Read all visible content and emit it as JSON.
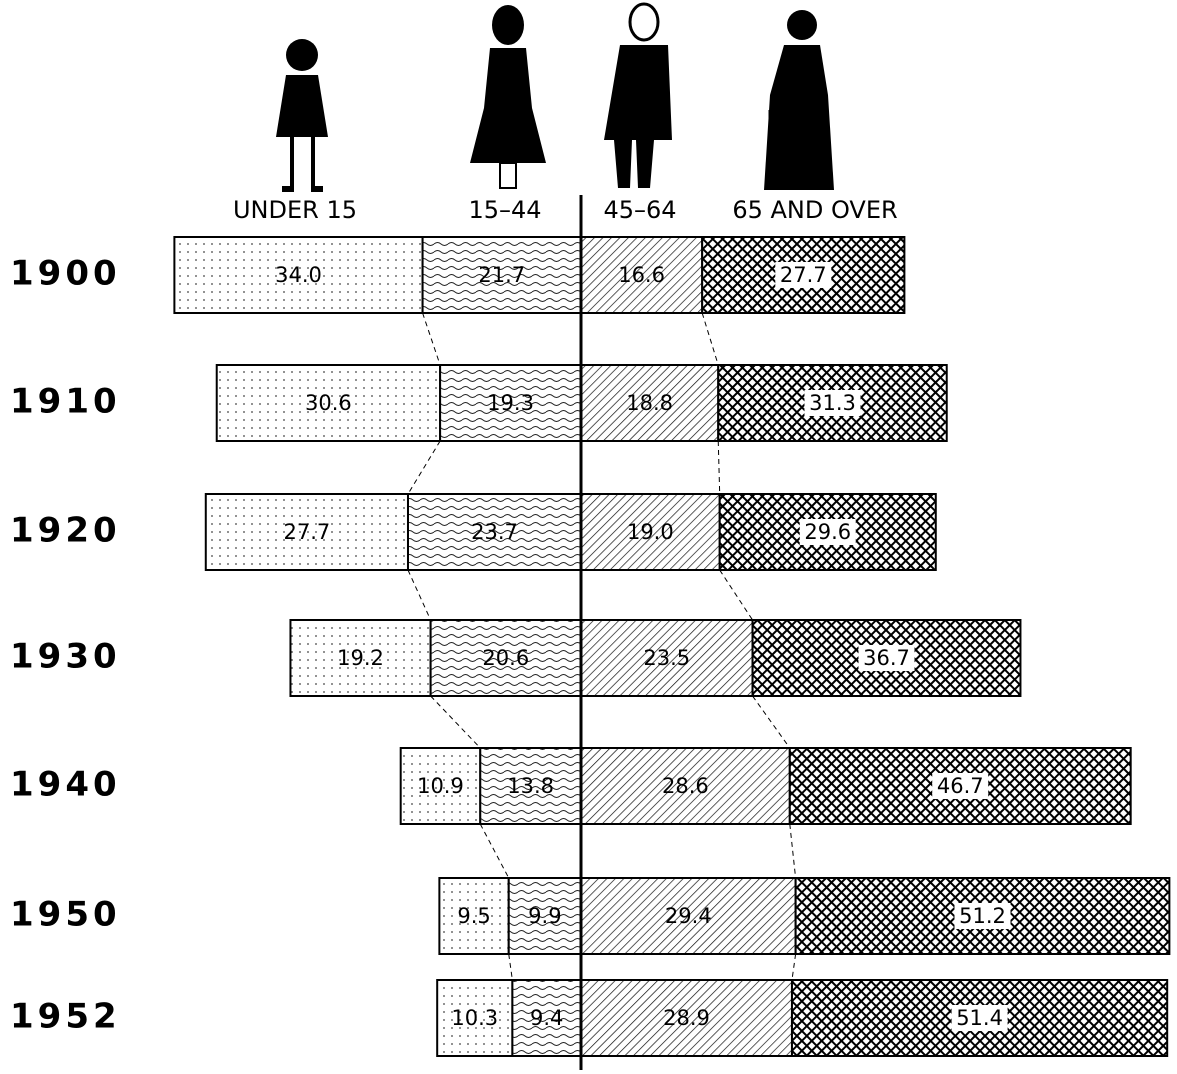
{
  "chart_data": {
    "type": "bar",
    "categories": [
      "1900",
      "1910",
      "1920",
      "1930",
      "1940",
      "1950",
      "1952"
    ],
    "series": [
      {
        "name": "UNDER 15",
        "values": [
          34.0,
          30.6,
          27.7,
          19.2,
          10.9,
          9.5,
          10.3
        ],
        "value_labels": [
          "34.0",
          "30.6",
          "27.7",
          "19.2",
          "10.9",
          "9.5",
          "10.3"
        ]
      },
      {
        "name": "15–44",
        "values": [
          21.7,
          19.3,
          23.7,
          20.6,
          13.8,
          9.9,
          9.4
        ],
        "value_labels": [
          "21.7",
          "19.3",
          "23.7",
          "20.6",
          "13.8",
          "9.9",
          "9.4"
        ]
      },
      {
        "name": "45–64",
        "values": [
          16.6,
          18.8,
          19.0,
          23.5,
          28.6,
          29.4,
          28.9
        ],
        "value_labels": [
          "16.6",
          "18.8",
          "19.0",
          "23.5",
          "28.6",
          "29.4",
          "28.9"
        ]
      },
      {
        "name": "65 AND OVER",
        "values": [
          27.7,
          31.3,
          29.6,
          36.7,
          46.7,
          51.2,
          51.4
        ],
        "value_labels": [
          "27.7",
          "31.3",
          "29.6",
          "36.7",
          "46.7",
          "51.2",
          "51.4"
        ]
      }
    ]
  }
}
